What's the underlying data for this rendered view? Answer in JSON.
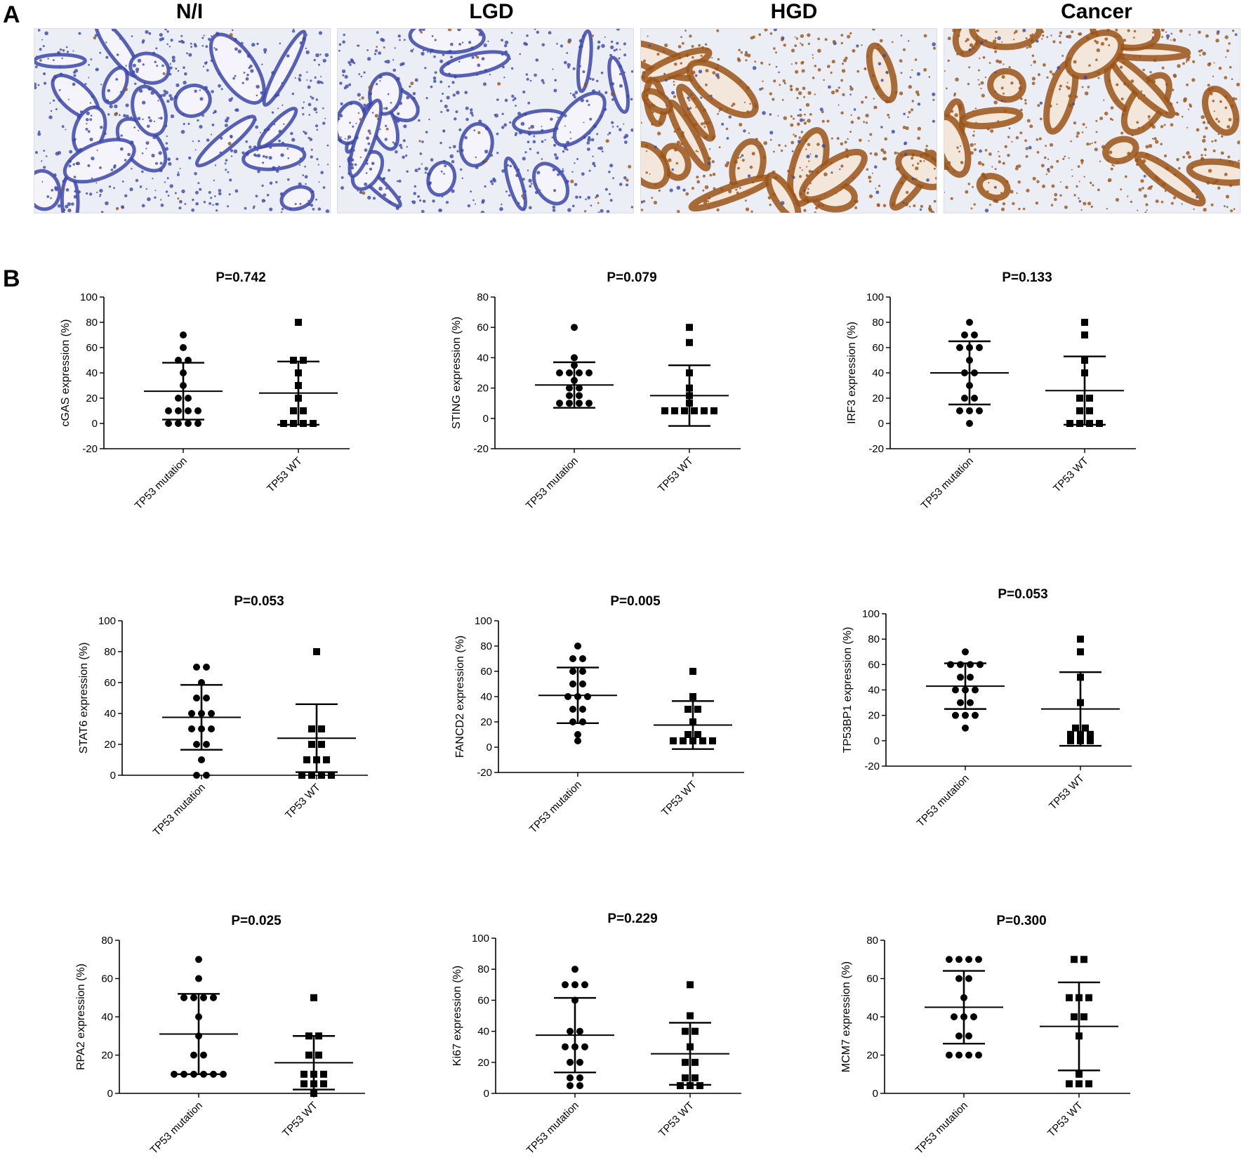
{
  "panel_labels": {
    "a": "A",
    "b": "B"
  },
  "histology": {
    "titles": [
      "N/I",
      "LGD",
      "HGD",
      "Cancer"
    ],
    "stain_colors": {
      "hematoxylin": "#3b47a8",
      "dab": "#9a5418",
      "background": "#eceef6"
    },
    "dab_levels": [
      0.02,
      0.08,
      0.85,
      0.95
    ]
  },
  "chart_data": [
    {
      "type": "scatter",
      "title": "P=0.742",
      "ylabel": "cGAS expression (%)",
      "categories": [
        "TP53 mutation",
        "TP53 WT"
      ],
      "ylim": [
        -20,
        100
      ],
      "yticks": [
        -20,
        0,
        20,
        40,
        60,
        80,
        100
      ],
      "series": [
        {
          "values": [
            70,
            60,
            50,
            50,
            40,
            30,
            20,
            20,
            10,
            10,
            10,
            10,
            0,
            0,
            0,
            0
          ],
          "mean": 25.5,
          "sd": 22.5
        },
        {
          "values": [
            80,
            50,
            50,
            40,
            30,
            20,
            10,
            10,
            0,
            0,
            0,
            0
          ],
          "mean": 24,
          "sd": 25
        }
      ]
    },
    {
      "type": "scatter",
      "title": "P=0.079",
      "ylabel": "STING expression (%)",
      "categories": [
        "TP53 mutation",
        "TP53 WT"
      ],
      "ylim": [
        -20,
        80
      ],
      "yticks": [
        -20,
        0,
        20,
        40,
        60,
        80
      ],
      "series": [
        {
          "values": [
            60,
            40,
            35,
            30,
            30,
            30,
            30,
            25,
            20,
            20,
            15,
            15,
            10,
            10,
            10,
            10
          ],
          "mean": 22,
          "sd": 15
        },
        {
          "values": [
            60,
            50,
            30,
            20,
            15,
            10,
            5,
            5,
            5,
            5,
            5,
            5
          ],
          "mean": 15,
          "sd": 20
        }
      ]
    },
    {
      "type": "scatter",
      "title": "P=0.133",
      "ylabel": "IRF3 expression (%)",
      "categories": [
        "TP53 mutation",
        "TP53 WT"
      ],
      "ylim": [
        -20,
        100
      ],
      "yticks": [
        -20,
        0,
        20,
        40,
        60,
        80,
        100
      ],
      "series": [
        {
          "values": [
            80,
            70,
            70,
            60,
            60,
            60,
            50,
            40,
            40,
            30,
            20,
            20,
            10,
            10,
            10,
            0
          ],
          "mean": 40,
          "sd": 25
        },
        {
          "values": [
            80,
            70,
            50,
            40,
            20,
            20,
            10,
            10,
            0,
            0,
            0,
            0
          ],
          "mean": 26,
          "sd": 27
        }
      ]
    },
    {
      "type": "scatter",
      "title": "P=0.053",
      "ylabel": "STAT6 expression (%)",
      "categories": [
        "TP53 mutation",
        "TP53 WT"
      ],
      "ylim": [
        0,
        100
      ],
      "yticks": [
        0,
        20,
        40,
        60,
        80,
        100
      ],
      "series": [
        {
          "values": [
            70,
            70,
            60,
            50,
            50,
            40,
            40,
            40,
            30,
            30,
            30,
            20,
            20,
            10,
            0,
            0
          ],
          "mean": 37.5,
          "sd": 21
        },
        {
          "values": [
            80,
            30,
            30,
            20,
            20,
            10,
            10,
            10,
            0,
            0,
            0,
            0
          ],
          "mean": 24,
          "sd": 22
        }
      ]
    },
    {
      "type": "scatter",
      "title": "P=0.005",
      "ylabel": "FANCD2 expression (%)",
      "categories": [
        "TP53 mutation",
        "TP53 WT"
      ],
      "ylim": [
        -20,
        100
      ],
      "yticks": [
        -20,
        0,
        20,
        40,
        60,
        80,
        100
      ],
      "series": [
        {
          "values": [
            80,
            70,
            70,
            60,
            60,
            50,
            50,
            40,
            40,
            40,
            30,
            30,
            20,
            20,
            10,
            5
          ],
          "mean": 41,
          "sd": 22
        },
        {
          "values": [
            60,
            40,
            30,
            30,
            20,
            10,
            10,
            5,
            5,
            5,
            5,
            5
          ],
          "mean": 17.5,
          "sd": 19
        }
      ]
    },
    {
      "type": "scatter",
      "title": "P=0.053",
      "ylabel": "TP53BP1 expression (%)",
      "categories": [
        "TP53 mutation",
        "TP53 WT"
      ],
      "ylim": [
        -20,
        100
      ],
      "yticks": [
        -20,
        0,
        20,
        40,
        60,
        80,
        100
      ],
      "series": [
        {
          "values": [
            70,
            60,
            60,
            60,
            60,
            50,
            50,
            40,
            40,
            40,
            30,
            30,
            20,
            20,
            20,
            10
          ],
          "mean": 43,
          "sd": 18
        },
        {
          "values": [
            80,
            70,
            50,
            30,
            10,
            10,
            5,
            5,
            0,
            0,
            0,
            5
          ],
          "mean": 25,
          "sd": 29
        }
      ]
    },
    {
      "type": "scatter",
      "title": "P=0.025",
      "ylabel": "RPA2 expression (%)",
      "categories": [
        "TP53 mutation",
        "TP53 WT"
      ],
      "ylim": [
        0,
        80
      ],
      "yticks": [
        0,
        20,
        40,
        60,
        80
      ],
      "series": [
        {
          "values": [
            70,
            60,
            50,
            50,
            50,
            50,
            40,
            30,
            20,
            20,
            10,
            10,
            10,
            10,
            10,
            10
          ],
          "mean": 31,
          "sd": 21
        },
        {
          "values": [
            50,
            30,
            30,
            20,
            20,
            10,
            10,
            10,
            5,
            5,
            5,
            0
          ],
          "mean": 16,
          "sd": 14
        }
      ]
    },
    {
      "type": "scatter",
      "title": "P=0.229",
      "ylabel": "Ki67 expression (%)",
      "categories": [
        "TP53 mutation",
        "TP53 WT"
      ],
      "ylim": [
        0,
        100
      ],
      "yticks": [
        0,
        20,
        40,
        60,
        80,
        100
      ],
      "series": [
        {
          "values": [
            80,
            70,
            70,
            70,
            60,
            40,
            40,
            30,
            30,
            30,
            20,
            20,
            10,
            10,
            5,
            5
          ],
          "mean": 37.5,
          "sd": 24
        },
        {
          "values": [
            70,
            50,
            40,
            40,
            30,
            20,
            20,
            10,
            10,
            5,
            5,
            5
          ],
          "mean": 25.5,
          "sd": 20
        }
      ]
    },
    {
      "type": "scatter",
      "title": "P=0.300",
      "ylabel": "MCM7 expression (%)",
      "categories": [
        "TP53 mutation",
        "TP53 WT"
      ],
      "ylim": [
        0,
        80
      ],
      "yticks": [
        0,
        20,
        40,
        60,
        80
      ],
      "series": [
        {
          "values": [
            70,
            70,
            70,
            70,
            60,
            60,
            50,
            40,
            40,
            40,
            30,
            30,
            20,
            20,
            20,
            20
          ],
          "mean": 45,
          "sd": 19
        },
        {
          "values": [
            70,
            70,
            50,
            50,
            50,
            40,
            40,
            30,
            10,
            5,
            5,
            5
          ],
          "mean": 35,
          "sd": 23
        }
      ]
    }
  ]
}
